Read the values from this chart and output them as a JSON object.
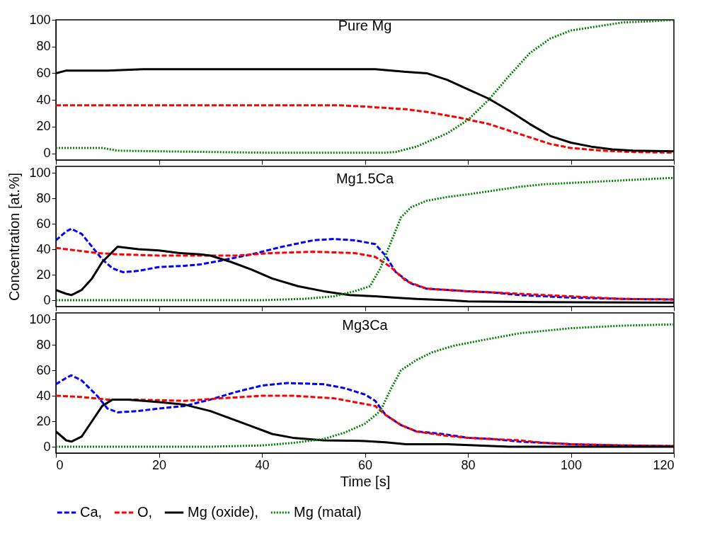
{
  "chart_data": [
    {
      "type": "line",
      "title": "Pure Mg",
      "xlim": [
        0,
        120
      ],
      "xticks": [
        0,
        20,
        40,
        60,
        80,
        100,
        120
      ],
      "ylim": [
        -5,
        100
      ],
      "yticks": [
        0,
        20,
        40,
        60,
        80,
        100
      ],
      "tick_labels": "y",
      "series": [
        {
          "color": "#ff0000",
          "line_style": "dashed",
          "x": [
            0,
            55,
            60,
            68,
            72,
            78,
            84,
            88,
            92,
            96,
            100,
            106,
            112,
            120
          ],
          "values": [
            36,
            36,
            35,
            33,
            31,
            27,
            22,
            17,
            12,
            7,
            4,
            2,
            1,
            0.5
          ]
        },
        {
          "color": "#000000",
          "line_style": "solid",
          "x": [
            0,
            2,
            10,
            17,
            62,
            68,
            72,
            76,
            80,
            84,
            88,
            92,
            96,
            100,
            104,
            108,
            112,
            120
          ],
          "values": [
            60,
            62,
            62,
            63,
            63,
            61,
            60,
            55,
            48,
            41,
            32,
            22,
            13,
            8,
            5,
            3,
            2,
            1.5
          ]
        },
        {
          "color": "#008000",
          "line_style": "dotted",
          "x": [
            0,
            9,
            12,
            20,
            30,
            40,
            64,
            66,
            70,
            76,
            80,
            84,
            88,
            92,
            96,
            100,
            105,
            110,
            116,
            120
          ],
          "values": [
            4,
            4,
            2,
            1.5,
            1,
            0.5,
            0.5,
            1,
            5,
            15,
            25,
            40,
            58,
            75,
            86,
            92,
            95,
            98,
            99,
            100
          ]
        }
      ]
    },
    {
      "type": "line",
      "title": "Mg1.5Ca",
      "ylabel": "Concentration [at.%]",
      "xlim": [
        0,
        120
      ],
      "xticks": [
        0,
        20,
        40,
        60,
        80,
        100,
        120
      ],
      "ylim": [
        -5,
        105
      ],
      "yticks": [
        0,
        20,
        40,
        60,
        80,
        100
      ],
      "tick_labels": "y",
      "series": [
        {
          "color": "#0000ff",
          "line_style": "dashed",
          "x": [
            0,
            2,
            3,
            5,
            7,
            9,
            11,
            13,
            16,
            20,
            25,
            28,
            32,
            38,
            44,
            50,
            54,
            58,
            62,
            64,
            66,
            69,
            72,
            76,
            80,
            85,
            90,
            95,
            100,
            105,
            110,
            120
          ],
          "values": [
            47,
            54,
            56,
            52,
            42,
            32,
            25,
            22,
            23,
            26,
            27,
            28,
            31,
            36,
            42,
            47,
            48,
            47,
            44,
            35,
            22,
            13,
            9,
            8,
            7,
            6,
            4,
            3,
            2,
            1.5,
            1,
            0.5
          ]
        },
        {
          "color": "#ff0000",
          "line_style": "dashed",
          "x": [
            0,
            4,
            8,
            12,
            20,
            30,
            35,
            42,
            50,
            58,
            62,
            65,
            68,
            72,
            76,
            80,
            90,
            100,
            105,
            110,
            120
          ],
          "values": [
            41,
            39,
            37,
            36,
            35,
            35,
            35,
            37,
            38,
            37,
            34,
            26,
            15,
            9,
            8,
            7,
            5,
            3,
            2,
            1,
            0.5
          ]
        },
        {
          "color": "#000000",
          "line_style": "solid",
          "x": [
            0,
            2,
            3,
            5,
            7,
            9,
            11,
            12,
            16,
            20,
            24,
            28,
            30,
            34,
            38,
            42,
            47,
            52,
            57,
            62,
            66,
            70,
            76,
            80,
            95,
            120
          ],
          "values": [
            8,
            5,
            4,
            8,
            17,
            30,
            38,
            42,
            40,
            39,
            37,
            36,
            35,
            30,
            24,
            17,
            11,
            7,
            4,
            3,
            2,
            1,
            0,
            -1,
            -1.5,
            -2
          ]
        },
        {
          "color": "#008000",
          "line_style": "dotted",
          "x": [
            0,
            40,
            48,
            54,
            58,
            61,
            63,
            65,
            67,
            69,
            72,
            76,
            80,
            85,
            90,
            95,
            100,
            105,
            110,
            120
          ],
          "values": [
            0,
            0,
            1,
            3,
            7,
            11,
            25,
            45,
            65,
            73,
            78,
            81,
            83,
            86,
            89,
            91,
            92,
            93,
            94,
            96
          ]
        }
      ]
    },
    {
      "type": "line",
      "title": "Mg3Ca",
      "xlabel": "Time [s]",
      "xlim": [
        0,
        120
      ],
      "xticks": [
        0,
        20,
        40,
        60,
        80,
        100,
        120
      ],
      "ylim": [
        -5,
        105
      ],
      "yticks": [
        0,
        20,
        40,
        60,
        80,
        100
      ],
      "legend": "bottom",
      "series": [
        {
          "name": "Ca,",
          "color": "#0000ff",
          "line_style": "dashed",
          "x": [
            0,
            2,
            3,
            5,
            8,
            10,
            12,
            16,
            20,
            25,
            30,
            35,
            40,
            45,
            52,
            56,
            60,
            62,
            64,
            67,
            70,
            75,
            80,
            85,
            90,
            95,
            100,
            110,
            120
          ],
          "values": [
            49,
            54,
            56,
            52,
            40,
            30,
            27,
            28,
            30,
            32,
            37,
            43,
            48,
            50,
            49,
            46,
            41,
            36,
            25,
            17,
            12,
            10,
            7,
            6,
            4,
            3,
            2,
            1,
            0.5
          ]
        },
        {
          "name": "O,",
          "color": "#ff0000",
          "line_style": "dashed",
          "x": [
            0,
            5,
            10,
            15,
            25,
            32,
            40,
            46,
            54,
            58,
            62,
            64,
            67,
            70,
            75,
            80,
            90,
            95,
            100,
            110,
            120
          ],
          "values": [
            40,
            39,
            37,
            37,
            36,
            38,
            40,
            40,
            38,
            35,
            32,
            25,
            17,
            12,
            9,
            7,
            5,
            3,
            2,
            1,
            0.5
          ]
        },
        {
          "name": "Mg (oxide),",
          "color": "#000000",
          "line_style": "solid",
          "x": [
            0,
            2,
            3,
            5,
            7,
            9,
            11,
            14,
            20,
            25,
            30,
            34,
            38,
            42,
            46,
            52,
            60,
            64,
            68,
            76,
            82,
            88,
            120
          ],
          "values": [
            12,
            5,
            4,
            8,
            20,
            32,
            37,
            37,
            35,
            33,
            28,
            22,
            16,
            10,
            7,
            5,
            4.5,
            3.5,
            2,
            2,
            1,
            0,
            0
          ]
        },
        {
          "name": "Mg (matal)",
          "color": "#008000",
          "line_style": "dotted",
          "x": [
            0,
            30,
            40,
            46,
            52,
            56,
            60,
            63,
            65,
            67,
            70,
            73,
            77,
            82,
            86,
            90,
            95,
            100,
            110,
            120
          ],
          "values": [
            0,
            0,
            1,
            3,
            6,
            11,
            18,
            28,
            45,
            60,
            68,
            74,
            79,
            83,
            86,
            89,
            91,
            93,
            95,
            96
          ]
        }
      ]
    }
  ]
}
